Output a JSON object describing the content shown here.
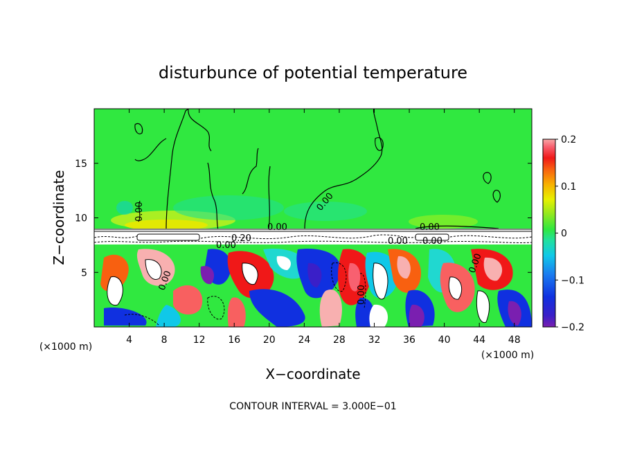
{
  "chart_data": {
    "type": "heatmap",
    "title": "disturbunce of potential temperature",
    "xlabel": "X−coordinate",
    "ylabel": "Z−coordinate",
    "x_unit": "(×1000 m)",
    "x_unit_right": "(×1000 m)",
    "xlim": [
      0,
      50
    ],
    "ylim": [
      0,
      20
    ],
    "x_ticks": [
      4,
      8,
      12,
      16,
      20,
      24,
      28,
      32,
      36,
      40,
      44,
      48
    ],
    "y_ticks": [
      5,
      10,
      15
    ],
    "colorbar": {
      "range": [
        -0.2,
        0.2
      ],
      "tick_values": [
        0.2,
        0.1,
        0,
        -0.1,
        -0.2
      ],
      "tick_labels": [
        "0.2",
        "0.1",
        "0",
        "−0.1",
        "−0.2"
      ]
    },
    "contour_labels": [
      "0.00",
      "0.00",
      "0.00",
      "0.00",
      "0.00",
      "0.00",
      "0.00",
      "0.00",
      "0.00",
      "0.20",
      "0.00"
    ],
    "footer": "CONTOUR INTERVAL = 3.000E−01",
    "grid": false,
    "legend": "colorbar-right"
  }
}
